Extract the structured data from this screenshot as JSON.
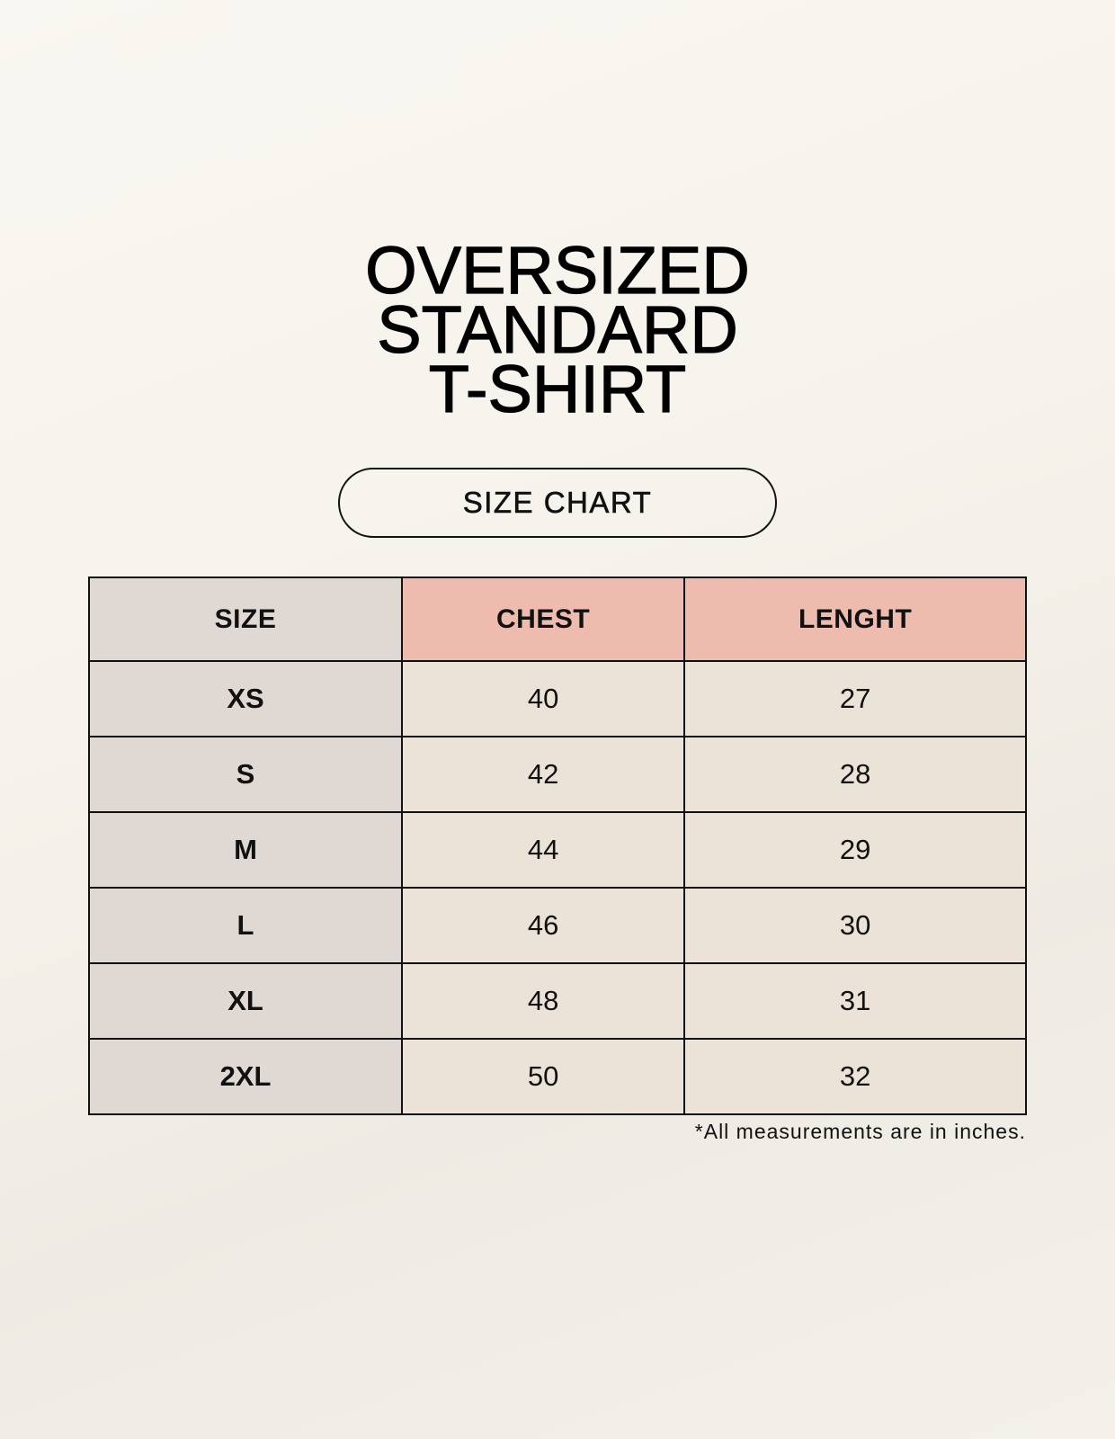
{
  "title_lines": [
    "OVERSIZED",
    "STANDARD",
    "T-SHIRT"
  ],
  "badge": "SIZE CHART",
  "table": {
    "headers": [
      "SIZE",
      "CHEST",
      "LENGHT"
    ],
    "rows": [
      [
        "XS",
        "40",
        "27"
      ],
      [
        "S",
        "42",
        "28"
      ],
      [
        "M",
        "44",
        "29"
      ],
      [
        "L",
        "46",
        "30"
      ],
      [
        "XL",
        "48",
        "31"
      ],
      [
        "2XL",
        "50",
        "32"
      ]
    ]
  },
  "footnote": "*All measurements are in inches.",
  "colors": {
    "size_column": "#e0d8d2",
    "header_accent": "#edbcae",
    "cell": "#ebe3d8",
    "background": "#f7f5ef"
  }
}
